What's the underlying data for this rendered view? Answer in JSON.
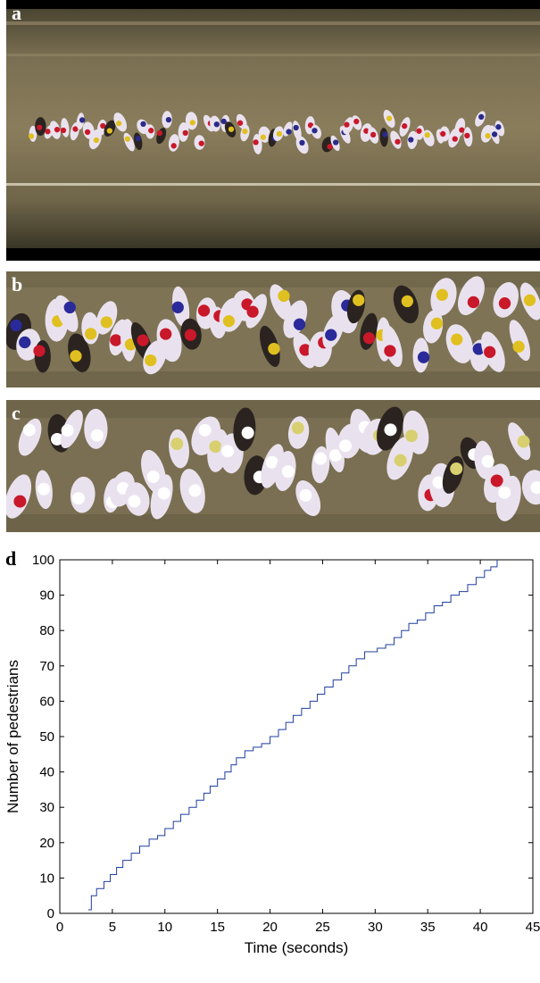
{
  "panels": {
    "a": {
      "letter": "a"
    },
    "b": {
      "letter": "b"
    },
    "c": {
      "letter": "c"
    },
    "d": {
      "letter": "d"
    }
  },
  "chart_data": {
    "type": "line",
    "style": "step",
    "title": "",
    "xlabel": "Time (seconds)",
    "ylabel": "Number of pedestrians",
    "xlim": [
      0,
      45
    ],
    "ylim": [
      0,
      100
    ],
    "xticks": [
      0,
      5,
      10,
      15,
      20,
      25,
      30,
      35,
      40,
      45
    ],
    "yticks": [
      0,
      10,
      20,
      30,
      40,
      50,
      60,
      70,
      80,
      90,
      100
    ],
    "grid": false,
    "line_color": "#1f3f9f",
    "series": [
      {
        "x": [
          2.7,
          3.0,
          3.5,
          4.2,
          4.8,
          5.4,
          6.0,
          6.8,
          7.6,
          8.5,
          9.3,
          10.0,
          10.8,
          11.5,
          12.3,
          13.0,
          13.7,
          14.3,
          15.0,
          15.7,
          16.3,
          16.8,
          17.6,
          18.4,
          19.2,
          20.0,
          20.8,
          21.5,
          22.2,
          23.0,
          23.8,
          24.5,
          25.2,
          26.0,
          26.8,
          27.5,
          28.2,
          29.0,
          30.2,
          31.0,
          31.8,
          32.5,
          33.2,
          34.0,
          34.8,
          35.6,
          36.4,
          37.2,
          38.0,
          38.8,
          39.6,
          40.4,
          41.0,
          41.6
        ],
        "y": [
          1,
          5,
          7,
          9,
          11,
          13,
          15,
          17,
          19,
          21,
          22,
          24,
          26,
          28,
          30,
          32,
          34,
          36,
          38,
          40,
          42,
          44,
          46,
          47,
          48,
          50,
          52,
          54,
          56,
          58,
          60,
          62,
          64,
          66,
          68,
          70,
          72,
          74,
          75,
          76,
          78,
          80,
          82,
          83,
          85,
          87,
          88,
          90,
          91,
          93,
          95,
          97,
          98,
          100
        ]
      }
    ]
  }
}
